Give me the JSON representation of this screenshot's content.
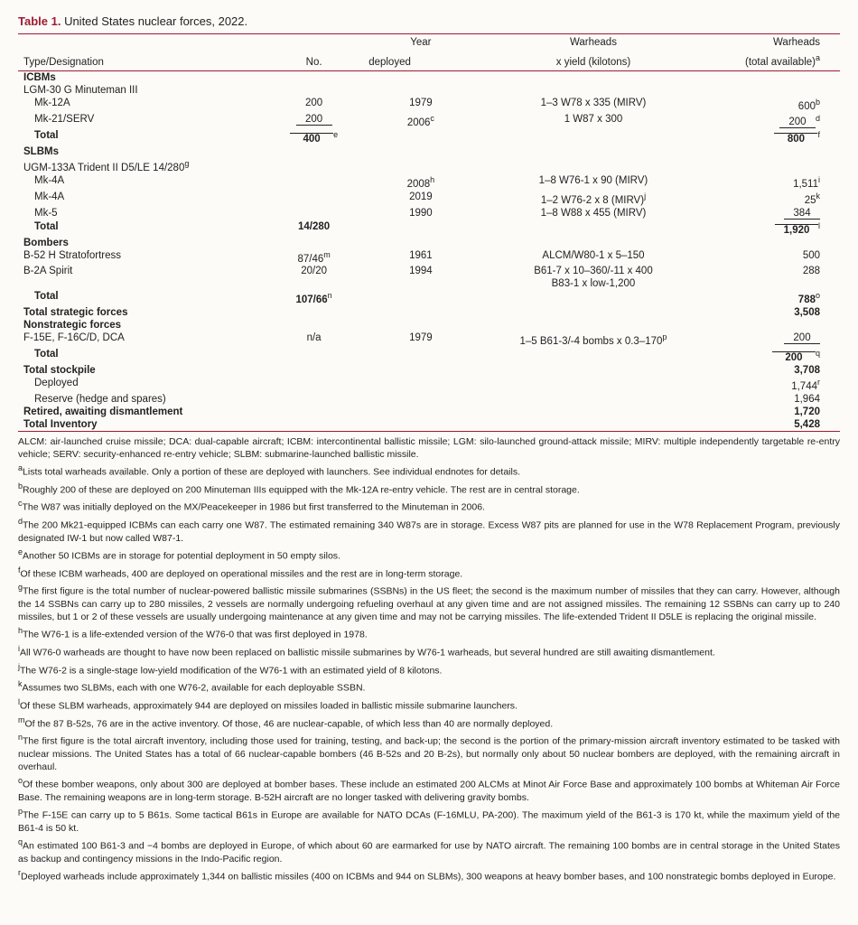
{
  "title_prefix": "Table 1.",
  "title": " United States nuclear forces, 2022.",
  "headers": {
    "type": "Type/Designation",
    "no": "No.",
    "year1": "Year",
    "year2": "deployed",
    "war1": "Warheads",
    "war2": "x yield (kilotons)",
    "tot1": "Warheads",
    "tot2": "(total available)",
    "tot2_sup": "a"
  },
  "sections": {
    "icbm_hdr": "ICBMs",
    "icbm_sub": "LGM-30 G Minuteman III",
    "mk12a": {
      "type": "Mk-12A",
      "no": "200",
      "year": "1979",
      "yield": "1–3 W78 x 335 (MIRV)",
      "tot": "600",
      "sup": "b"
    },
    "mk21": {
      "type": "Mk-21/SERV",
      "no": "200",
      "year": "2006",
      "ysup": "c",
      "yield": "1 W87 x 300",
      "tot": "200",
      "sup": "d"
    },
    "icbm_tot": {
      "label": "Total",
      "no": "400",
      "nosup": "e",
      "tot": "800",
      "tsup": "f"
    },
    "slbm_hdr": "SLBMs",
    "slbm_sub": "UGM-133A Trident II D5/LE 14/280",
    "slbm_sub_sup": "g",
    "mk4a1": {
      "type": "Mk-4A",
      "year": "2008",
      "ysup": "h",
      "yield": "1–8 W76-1 x 90 (MIRV)",
      "tot": "1,511",
      "sup": "i"
    },
    "mk4a2": {
      "type": "Mk-4A",
      "year": "2019",
      "yield": "1–2 W76-2 x 8 (MIRV)",
      "ydsup": "j",
      "tot": "25",
      "sup": "k"
    },
    "mk5": {
      "type": "Mk-5",
      "year": "1990",
      "yield": "1–8 W88 x 455 (MIRV)",
      "tot": "384"
    },
    "slbm_tot": {
      "label": "Total",
      "no": "14/280",
      "tot": "1,920",
      "tsup": "l"
    },
    "bomb_hdr": "Bombers",
    "b52": {
      "type": "B-52 H Stratofortress",
      "no": "87/46",
      "nsup": "m",
      "year": "1961",
      "yield": "ALCM/W80-1 x 5–150",
      "tot": "500"
    },
    "b2a": {
      "type": "B-2A Spirit",
      "no": "20/20",
      "year": "1994",
      "yield": "B61-7 x 10–360/-11 x 400",
      "tot": "288"
    },
    "b2a2": {
      "yield": "B83-1 x low-1,200"
    },
    "bomb_tot": {
      "label": "Total",
      "no": "107/66",
      "nsup": "n",
      "tot": "788",
      "tsup": "o"
    },
    "strat_tot": {
      "label": "Total strategic forces",
      "tot": "3,508"
    },
    "nonstrat_hdr": "Nonstrategic forces",
    "f15": {
      "type": "F-15E, F-16C/D, DCA",
      "no": "n/a",
      "year": "1979",
      "yield": "1–5 B61-3/-4 bombs x 0.3–170",
      "ysup": "p",
      "tot": "200"
    },
    "ns_tot": {
      "label": "Total",
      "tot": "200",
      "tsup": "q"
    },
    "stock_tot": {
      "label": "Total stockpile",
      "tot": "3,708"
    },
    "deployed": {
      "label": "Deployed",
      "tot": "1,744",
      "sup": "r"
    },
    "reserve": {
      "label": "Reserve (hedge and spares)",
      "tot": "1,964"
    },
    "retired": {
      "label": "Retired, awaiting dismantlement",
      "tot": "1,720"
    },
    "inv": {
      "label": "Total Inventory",
      "tot": "5,428"
    }
  },
  "foot_abbrev": "ALCM: air-launched cruise missile; DCA: dual-capable aircraft; ICBM: intercontinental ballistic missile; LGM: silo-launched ground-attack missile; MIRV: multiple independently targetable re-entry vehicle; SERV: security-enhanced re-entry vehicle; SLBM: submarine-launched ballistic missile.",
  "foot": {
    "a": "Lists total warheads available. Only a portion of these are deployed with launchers. See individual endnotes for details.",
    "b": "Roughly 200 of these are deployed on 200 Minuteman IIIs equipped with the Mk-12A re-entry vehicle. The rest are in central storage.",
    "c": "The W87 was initially deployed on the MX/Peacekeeper in 1986 but first transferred to the Minuteman in 2006.",
    "d": "The 200 Mk21-equipped ICBMs can each carry one W87. The estimated remaining 340 W87s are in storage. Excess W87 pits are planned for use in the W78 Replacement Program, previously designated IW-1 but now called W87-1.",
    "e": "Another 50 ICBMs are in storage for potential deployment in 50 empty silos.",
    "f": "Of these ICBM warheads, 400 are deployed on operational missiles and the rest are in long-term storage.",
    "g": "The first figure is the total number of nuclear-powered ballistic missile submarines (SSBNs) in the US fleet; the second is the maximum number of missiles that they can carry. However, although the 14 SSBNs can carry up to 280 missiles, 2 vessels are normally undergoing refueling overhaul at any given time and are not assigned missiles. The remaining 12 SSBNs can carry up to 240 missiles, but 1 or 2 of these vessels are usually undergoing maintenance at any given time and may not be carrying missiles. The life-extended Trident II D5LE is replacing the original missile.",
    "h": "The W76-1 is a life-extended version of the W76-0 that was first deployed in 1978.",
    "i": "All W76-0 warheads are thought to have now been replaced on ballistic missile submarines by W76-1 warheads, but several hundred are still awaiting dismantlement.",
    "j": "The W76-2 is a single-stage low-yield modification of the W76-1 with an estimated yield of 8 kilotons.",
    "k": "Assumes two SLBMs, each with one W76-2, available for each deployable SSBN.",
    "l": "Of these SLBM warheads, approximately 944 are deployed on missiles loaded in ballistic missile submarine launchers.",
    "m": "Of the 87 B-52s, 76 are in the active inventory. Of those, 46 are nuclear-capable, of which less than 40 are normally deployed.",
    "n": "The first figure is the total aircraft inventory, including those used for training, testing, and back-up; the second is the portion of the primary-mission aircraft inventory estimated to be tasked with nuclear missions. The United States has a total of 66 nuclear-capable bombers (46 B-52s and 20 B-2s), but normally only about 50 nuclear bombers are deployed, with the remaining aircraft in overhaul.",
    "o": "Of these bomber weapons, only about 300 are deployed at bomber bases. These include an estimated 200 ALCMs at Minot Air Force Base and approximately 100 bombs at Whiteman Air Force Base. The remaining weapons are in long-term storage. B-52H aircraft are no longer tasked with delivering gravity bombs.",
    "p": "The F-15E can carry up to 5 B61s. Some tactical B61s in Europe are available for NATO DCAs (F-16MLU, PA-200). The maximum yield of the B61-3 is 170 kt, while the maximum yield of the B61-4 is 50 kt.",
    "q": "An estimated 100 B61-3 and −4 bombs are deployed in Europe, of which about 60 are earmarked for use by NATO aircraft. The remaining 100 bombs are in central storage in the United States as backup and contingency missions in the Indo-Pacific region.",
    "r": "Deployed warheads include approximately 1,344 on ballistic missiles (400 on ICBMs and 944 on SLBMs), 300 weapons at heavy bomber bases, and 100 nonstrategic bombs deployed in Europe."
  }
}
